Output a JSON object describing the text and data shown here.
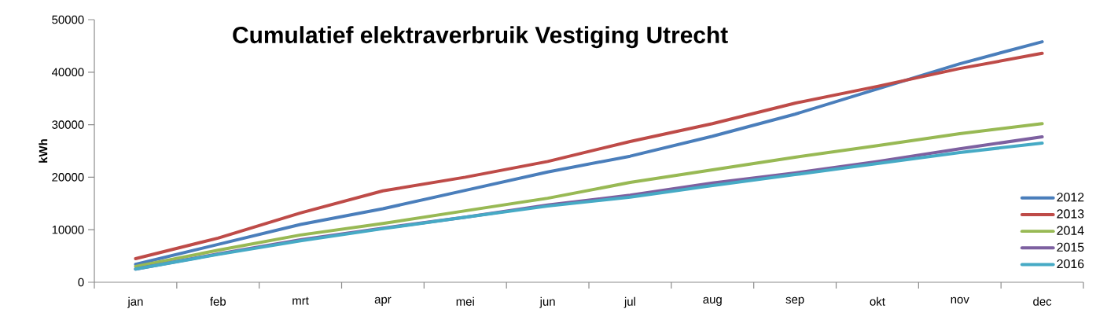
{
  "chart_data": {
    "type": "line",
    "title": "Cumulatief elektraverbruik Vestiging Utrecht",
    "ylabel": "kWh",
    "categories": [
      "jan",
      "feb",
      "mrt",
      "apr",
      "mei",
      "jun",
      "jul",
      "aug",
      "sep",
      "okt",
      "nov",
      "dec"
    ],
    "series": [
      {
        "name": "2012",
        "color": "#4a7ebb",
        "values": [
          3400,
          7200,
          11000,
          14000,
          17500,
          21000,
          24000,
          27800,
          32000,
          36800,
          41600,
          45800
        ]
      },
      {
        "name": "2013",
        "color": "#be4b48",
        "values": [
          4500,
          8400,
          13200,
          17400,
          20000,
          23000,
          26800,
          30200,
          34100,
          37300,
          40700,
          43600
        ]
      },
      {
        "name": "2014",
        "color": "#98b954",
        "values": [
          3000,
          6100,
          9000,
          11200,
          13600,
          16000,
          19000,
          21400,
          23800,
          26000,
          28300,
          30200
        ]
      },
      {
        "name": "2015",
        "color": "#7d60a0",
        "values": [
          2500,
          5400,
          8100,
          10300,
          12400,
          14700,
          16600,
          18900,
          20800,
          23000,
          25400,
          27700
        ]
      },
      {
        "name": "2016",
        "color": "#46aac5",
        "values": [
          2500,
          5300,
          7900,
          10200,
          12400,
          14500,
          16200,
          18400,
          20500,
          22600,
          24700,
          26500
        ]
      }
    ],
    "ylim": [
      0,
      50000
    ],
    "yticks": [
      0,
      10000,
      20000,
      30000,
      40000,
      50000
    ],
    "grid": false,
    "legend": "right",
    "marker": "none",
    "line_style": "solid"
  }
}
